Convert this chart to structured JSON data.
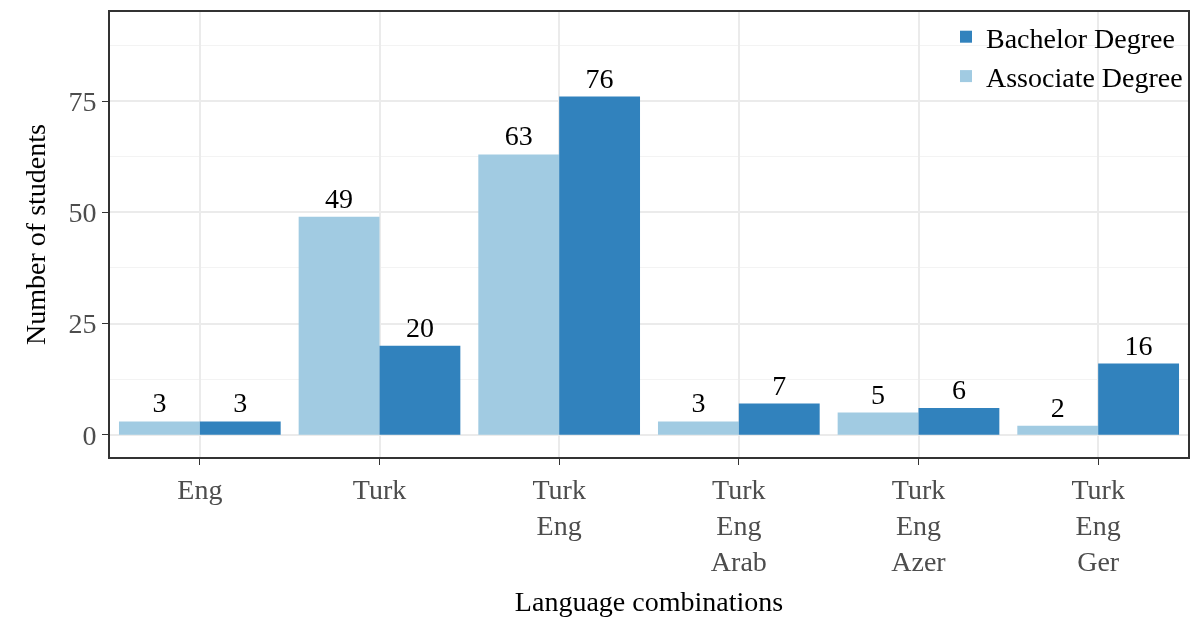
{
  "chart_data": {
    "type": "bar",
    "xlabel": "Language combinations",
    "ylabel": "Number of students",
    "categories": [
      "Eng",
      "Turk",
      "Turk\nEng",
      "Turk\nEng\nArab",
      "Turk\nEng\nAzer",
      "Turk\nEng\nGer"
    ],
    "series": [
      {
        "name": "Associate Degree",
        "color": "#a1cbe2",
        "values": [
          3,
          49,
          63,
          3,
          5,
          2
        ]
      },
      {
        "name": "Bachelor Degree",
        "color": "#3182bd",
        "values": [
          3,
          20,
          76,
          7,
          6,
          16
        ]
      }
    ],
    "ylim": [
      -5,
      95
    ],
    "yticks": [
      0,
      25,
      50,
      75
    ],
    "grid": true,
    "legend": "top right",
    "data_labels": true
  }
}
